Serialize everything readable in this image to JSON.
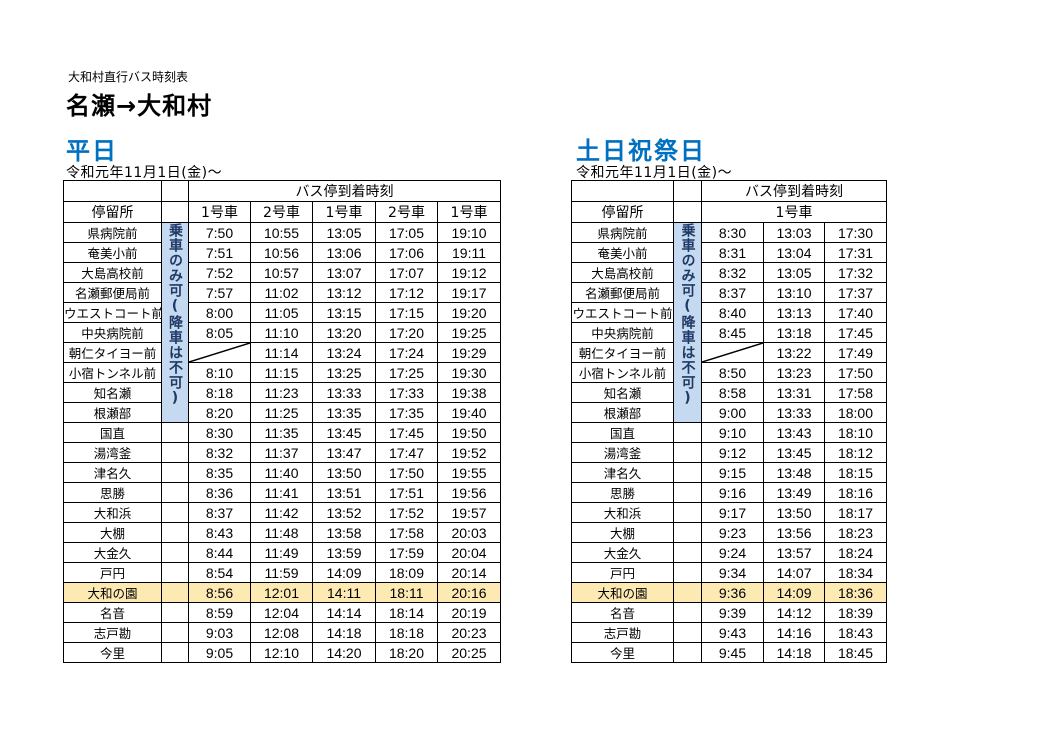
{
  "document": {
    "subtitle": "大和村直行バス時刻表",
    "title": "名瀬→大和村"
  },
  "weekday": {
    "title": "平日",
    "date": "令和元年11月1日(金)～",
    "group_header": "バス停到着時刻",
    "stop_header": "停留所",
    "columns": [
      "1号車",
      "2号車",
      "1号車",
      "2号車",
      "1号車"
    ],
    "boarding_note": "乗車のみ可(降車は不可)",
    "rows": [
      {
        "stop": "県病院前",
        "times": [
          "7:50",
          "10:55",
          "13:05",
          "17:05",
          "19:10"
        ]
      },
      {
        "stop": "奄美小前",
        "times": [
          "7:51",
          "10:56",
          "13:06",
          "17:06",
          "19:11"
        ]
      },
      {
        "stop": "大島高校前",
        "times": [
          "7:52",
          "10:57",
          "13:07",
          "17:07",
          "19:12"
        ]
      },
      {
        "stop": "名瀬郵便局前",
        "times": [
          "7:57",
          "11:02",
          "13:12",
          "17:12",
          "19:17"
        ]
      },
      {
        "stop": "ウエストコート前",
        "times": [
          "8:00",
          "11:05",
          "13:15",
          "17:15",
          "19:20"
        ]
      },
      {
        "stop": "中央病院前",
        "times": [
          "8:05",
          "11:10",
          "13:20",
          "17:20",
          "19:25"
        ]
      },
      {
        "stop": "朝仁タイヨー前",
        "times": [
          "",
          "11:14",
          "13:24",
          "17:24",
          "19:29"
        ]
      },
      {
        "stop": "小宿トンネル前",
        "times": [
          "8:10",
          "11:15",
          "13:25",
          "17:25",
          "19:30"
        ]
      },
      {
        "stop": "知名瀬",
        "times": [
          "8:18",
          "11:23",
          "13:33",
          "17:33",
          "19:38"
        ]
      },
      {
        "stop": "根瀬部",
        "times": [
          "8:20",
          "11:25",
          "13:35",
          "17:35",
          "19:40"
        ]
      },
      {
        "stop": "国直",
        "times": [
          "8:30",
          "11:35",
          "13:45",
          "17:45",
          "19:50"
        ]
      },
      {
        "stop": "湯湾釜",
        "times": [
          "8:32",
          "11:37",
          "13:47",
          "17:47",
          "19:52"
        ]
      },
      {
        "stop": "津名久",
        "times": [
          "8:35",
          "11:40",
          "13:50",
          "17:50",
          "19:55"
        ]
      },
      {
        "stop": "思勝",
        "times": [
          "8:36",
          "11:41",
          "13:51",
          "17:51",
          "19:56"
        ]
      },
      {
        "stop": "大和浜",
        "times": [
          "8:37",
          "11:42",
          "13:52",
          "17:52",
          "19:57"
        ]
      },
      {
        "stop": "大棚",
        "times": [
          "8:43",
          "11:48",
          "13:58",
          "17:58",
          "20:03"
        ]
      },
      {
        "stop": "大金久",
        "times": [
          "8:44",
          "11:49",
          "13:59",
          "17:59",
          "20:04"
        ]
      },
      {
        "stop": "戸円",
        "times": [
          "8:54",
          "11:59",
          "14:09",
          "18:09",
          "20:14"
        ]
      },
      {
        "stop": "大和の園",
        "times": [
          "8:56",
          "12:01",
          "14:11",
          "18:11",
          "20:16"
        ],
        "highlight": true
      },
      {
        "stop": "名音",
        "times": [
          "8:59",
          "12:04",
          "14:14",
          "18:14",
          "20:19"
        ]
      },
      {
        "stop": "志戸勘",
        "times": [
          "9:03",
          "12:08",
          "14:18",
          "18:18",
          "20:23"
        ]
      },
      {
        "stop": "今里",
        "times": [
          "9:05",
          "12:10",
          "14:20",
          "18:20",
          "20:25"
        ]
      }
    ]
  },
  "holiday": {
    "title": "土日祝祭日",
    "date": "令和元年11月1日(金)～",
    "group_header": "バス停到着時刻",
    "stop_header": "停留所",
    "columns": [
      "1号車"
    ],
    "boarding_note": "乗車のみ可(降車は不可)",
    "rows": [
      {
        "stop": "県病院前",
        "times": [
          "8:30",
          "13:03",
          "17:30"
        ]
      },
      {
        "stop": "奄美小前",
        "times": [
          "8:31",
          "13:04",
          "17:31"
        ]
      },
      {
        "stop": "大島高校前",
        "times": [
          "8:32",
          "13:05",
          "17:32"
        ]
      },
      {
        "stop": "名瀬郵便局前",
        "times": [
          "8:37",
          "13:10",
          "17:37"
        ]
      },
      {
        "stop": "ウエストコート前",
        "times": [
          "8:40",
          "13:13",
          "17:40"
        ]
      },
      {
        "stop": "中央病院前",
        "times": [
          "8:45",
          "13:18",
          "17:45"
        ]
      },
      {
        "stop": "朝仁タイヨー前",
        "times": [
          "",
          "13:22",
          "17:49"
        ]
      },
      {
        "stop": "小宿トンネル前",
        "times": [
          "8:50",
          "13:23",
          "17:50"
        ]
      },
      {
        "stop": "知名瀬",
        "times": [
          "8:58",
          "13:31",
          "17:58"
        ]
      },
      {
        "stop": "根瀬部",
        "times": [
          "9:00",
          "13:33",
          "18:00"
        ]
      },
      {
        "stop": "国直",
        "times": [
          "9:10",
          "13:43",
          "18:10"
        ]
      },
      {
        "stop": "湯湾釜",
        "times": [
          "9:12",
          "13:45",
          "18:12"
        ]
      },
      {
        "stop": "津名久",
        "times": [
          "9:15",
          "13:48",
          "18:15"
        ]
      },
      {
        "stop": "思勝",
        "times": [
          "9:16",
          "13:49",
          "18:16"
        ]
      },
      {
        "stop": "大和浜",
        "times": [
          "9:17",
          "13:50",
          "18:17"
        ]
      },
      {
        "stop": "大棚",
        "times": [
          "9:23",
          "13:56",
          "18:23"
        ]
      },
      {
        "stop": "大金久",
        "times": [
          "9:24",
          "13:57",
          "18:24"
        ]
      },
      {
        "stop": "戸円",
        "times": [
          "9:34",
          "14:07",
          "18:34"
        ]
      },
      {
        "stop": "大和の園",
        "times": [
          "9:36",
          "14:09",
          "18:36"
        ],
        "highlight": true
      },
      {
        "stop": "名音",
        "times": [
          "9:39",
          "14:12",
          "18:39"
        ]
      },
      {
        "stop": "志戸勘",
        "times": [
          "9:43",
          "14:16",
          "18:43"
        ]
      },
      {
        "stop": "今里",
        "times": [
          "9:45",
          "14:18",
          "18:45"
        ]
      }
    ]
  },
  "colors": {
    "section_title": "#0070c0",
    "highlight_row": "#fde9b2",
    "note_column": "#c5d9f1"
  }
}
